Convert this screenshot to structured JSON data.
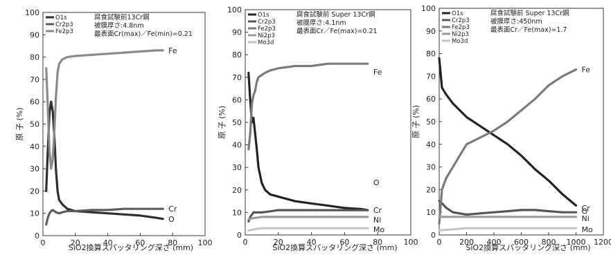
{
  "chart_data": [
    {
      "type": "line",
      "ylabel": "原 子 (%)",
      "xlabel": "SiO2換算スパッタリング深さ (mm)",
      "xlim": [
        0,
        100
      ],
      "ylim": [
        0,
        100
      ],
      "xticks": [
        0,
        20,
        40,
        60,
        80,
        100
      ],
      "yticks": [
        0,
        10,
        20,
        30,
        40,
        50,
        60,
        70,
        80,
        90,
        100
      ],
      "legend": [
        "O1s",
        "Cr2p3",
        "Fe2p3"
      ],
      "legend_position": "top-left",
      "annotation": [
        "腐食試験前13Cr鋼",
        "被膜厚さ:4.8nm",
        "最表面Cr(max)／Fe(min)=0.21"
      ],
      "series": [
        {
          "name": "O1s",
          "end_label": "O",
          "color": "#2e2e2e",
          "x": [
            2,
            3,
            4,
            5,
            6,
            7,
            8,
            9,
            10,
            12,
            15,
            20,
            30,
            40,
            50,
            60,
            70,
            74
          ],
          "y": [
            20,
            38,
            55,
            60,
            56,
            45,
            30,
            20,
            16,
            14,
            12,
            11,
            10.5,
            10,
            9.5,
            9,
            8,
            7.5
          ]
        },
        {
          "name": "Cr2p3",
          "end_label": "Cr",
          "color": "#5c5c5c",
          "x": [
            2,
            3,
            4,
            5,
            6,
            7,
            8,
            10,
            12,
            15,
            20,
            30,
            40,
            50,
            60,
            70,
            74
          ],
          "y": [
            5,
            8,
            10,
            11,
            11.5,
            11,
            10.5,
            10,
            10.5,
            11,
            11,
            11.5,
            11.5,
            12,
            12,
            12,
            12
          ]
        },
        {
          "name": "Fe2p3",
          "end_label": "Fe",
          "color": "#8a8a8a",
          "x": [
            2,
            3,
            4,
            5,
            6,
            7,
            8,
            9,
            10,
            12,
            15,
            20,
            30,
            40,
            50,
            60,
            70,
            74
          ],
          "y": [
            75,
            58,
            38,
            30,
            34,
            46,
            62,
            73,
            77,
            79,
            80,
            80.5,
            81,
            81.5,
            82,
            82.5,
            83,
            83
          ]
        }
      ]
    },
    {
      "type": "line",
      "ylabel": "原 子 (%)",
      "xlabel": "SiO2換算スパッタリング深さ (mm)",
      "xlim": [
        0,
        100
      ],
      "ylim": [
        0,
        100
      ],
      "xticks": [
        0,
        20,
        40,
        60,
        80,
        100
      ],
      "yticks": [
        0,
        10,
        20,
        30,
        40,
        50,
        60,
        70,
        80,
        90,
        100
      ],
      "legend": [
        "O1s",
        "Cr2p3",
        "Fe2p3",
        "Ni2p3",
        "Mo3d"
      ],
      "legend_position": "top-left",
      "annotation": [
        "腐食試験前 Super 13Cr鋼",
        "被膜厚さ:4.1nm",
        "最表面Cr／Fe(max)=0.21"
      ],
      "series": [
        {
          "name": "O1s",
          "end_label": "O",
          "color": "#222222",
          "x": [
            2,
            3,
            4,
            5,
            6,
            7,
            8,
            10,
            12,
            15,
            20,
            30,
            40,
            50,
            60,
            70,
            74
          ],
          "y": [
            72,
            60,
            50,
            52,
            45,
            38,
            30,
            23,
            20,
            18,
            17,
            15,
            14,
            13,
            12,
            11.5,
            11
          ]
        },
        {
          "name": "Cr2p3",
          "end_label": "Cr",
          "color": "#555555",
          "x": [
            2,
            3,
            4,
            5,
            6,
            8,
            10,
            15,
            20,
            30,
            40,
            50,
            60,
            70,
            74
          ],
          "y": [
            6,
            8,
            9,
            10,
            10,
            10,
            10,
            10.5,
            11,
            11,
            11,
            11,
            11,
            11,
            11
          ]
        },
        {
          "name": "Fe2p3",
          "end_label": "Fe",
          "color": "#7a7a7a",
          "x": [
            2,
            3,
            4,
            5,
            6,
            7,
            8,
            10,
            12,
            15,
            20,
            30,
            40,
            50,
            60,
            70,
            74
          ],
          "y": [
            38,
            45,
            58,
            62,
            64,
            68,
            70,
            71,
            72,
            73,
            74,
            75,
            75,
            76,
            76,
            76,
            76
          ]
        },
        {
          "name": "Ni2p3",
          "end_label": "Ni",
          "color": "#9a9a9a",
          "x": [
            2,
            5,
            10,
            20,
            30,
            40,
            50,
            60,
            70,
            74
          ],
          "y": [
            7,
            7.5,
            8,
            8,
            8,
            8,
            8,
            8,
            8,
            8
          ]
        },
        {
          "name": "Mo3d",
          "end_label": "Mo",
          "color": "#c4c4c4",
          "x": [
            2,
            5,
            10,
            20,
            30,
            40,
            50,
            60,
            70,
            74
          ],
          "y": [
            2,
            2.5,
            3,
            3,
            3,
            3,
            3,
            3,
            3,
            3
          ]
        }
      ]
    },
    {
      "type": "line",
      "ylabel": "原 子 (%)",
      "xlabel": "SiO2換算スパッタリング深さ (mm)",
      "xlim": [
        0,
        1200
      ],
      "ylim": [
        0,
        100
      ],
      "xticks": [
        0,
        200,
        400,
        600,
        800,
        1000,
        1200
      ],
      "yticks": [
        0,
        10,
        20,
        30,
        40,
        50,
        60,
        70,
        80,
        90,
        100
      ],
      "legend": [
        "O1s",
        "Cr2p3",
        "Fe2p3",
        "Ni2p3",
        "Mo3d"
      ],
      "legend_position": "top-left",
      "annotation": [
        "腐食試験前 Super 13Cr鋼",
        "被膜厚さ:450nm",
        "最表面Cr／Fe(max)=1.7"
      ],
      "series": [
        {
          "name": "O1s",
          "end_label": "O",
          "color": "#222222",
          "x": [
            0,
            20,
            50,
            100,
            200,
            300,
            400,
            500,
            600,
            700,
            800,
            900,
            1000
          ],
          "y": [
            78,
            65,
            62,
            58,
            52,
            48,
            44,
            40,
            35,
            29,
            24,
            18,
            13
          ]
        },
        {
          "name": "Cr2p3",
          "end_label": "Cr",
          "color": "#555555",
          "x": [
            0,
            20,
            50,
            100,
            200,
            300,
            400,
            500,
            600,
            700,
            800,
            900,
            1000
          ],
          "y": [
            15,
            14,
            12,
            10,
            9,
            9.5,
            10,
            10.5,
            11,
            11,
            10.5,
            10,
            10
          ]
        },
        {
          "name": "Fe2p3",
          "end_label": "Fe",
          "color": "#7a7a7a",
          "x": [
            0,
            20,
            50,
            100,
            150,
            200,
            300,
            400,
            500,
            600,
            700,
            800,
            900,
            1000
          ],
          "y": [
            5,
            20,
            25,
            30,
            35,
            40,
            43,
            46,
            50,
            55,
            60,
            66,
            70,
            73
          ]
        },
        {
          "name": "Ni2p3",
          "end_label": "Ni",
          "color": "#9a9a9a",
          "x": [
            0,
            100,
            200,
            400,
            600,
            800,
            1000
          ],
          "y": [
            8,
            8,
            8,
            8,
            8,
            8,
            8
          ]
        },
        {
          "name": "Mo3d",
          "end_label": "Mo",
          "color": "#c4c4c4",
          "x": [
            0,
            100,
            200,
            400,
            600,
            800,
            1000
          ],
          "y": [
            2,
            2.5,
            3,
            3,
            3,
            3,
            3
          ]
        }
      ]
    }
  ]
}
